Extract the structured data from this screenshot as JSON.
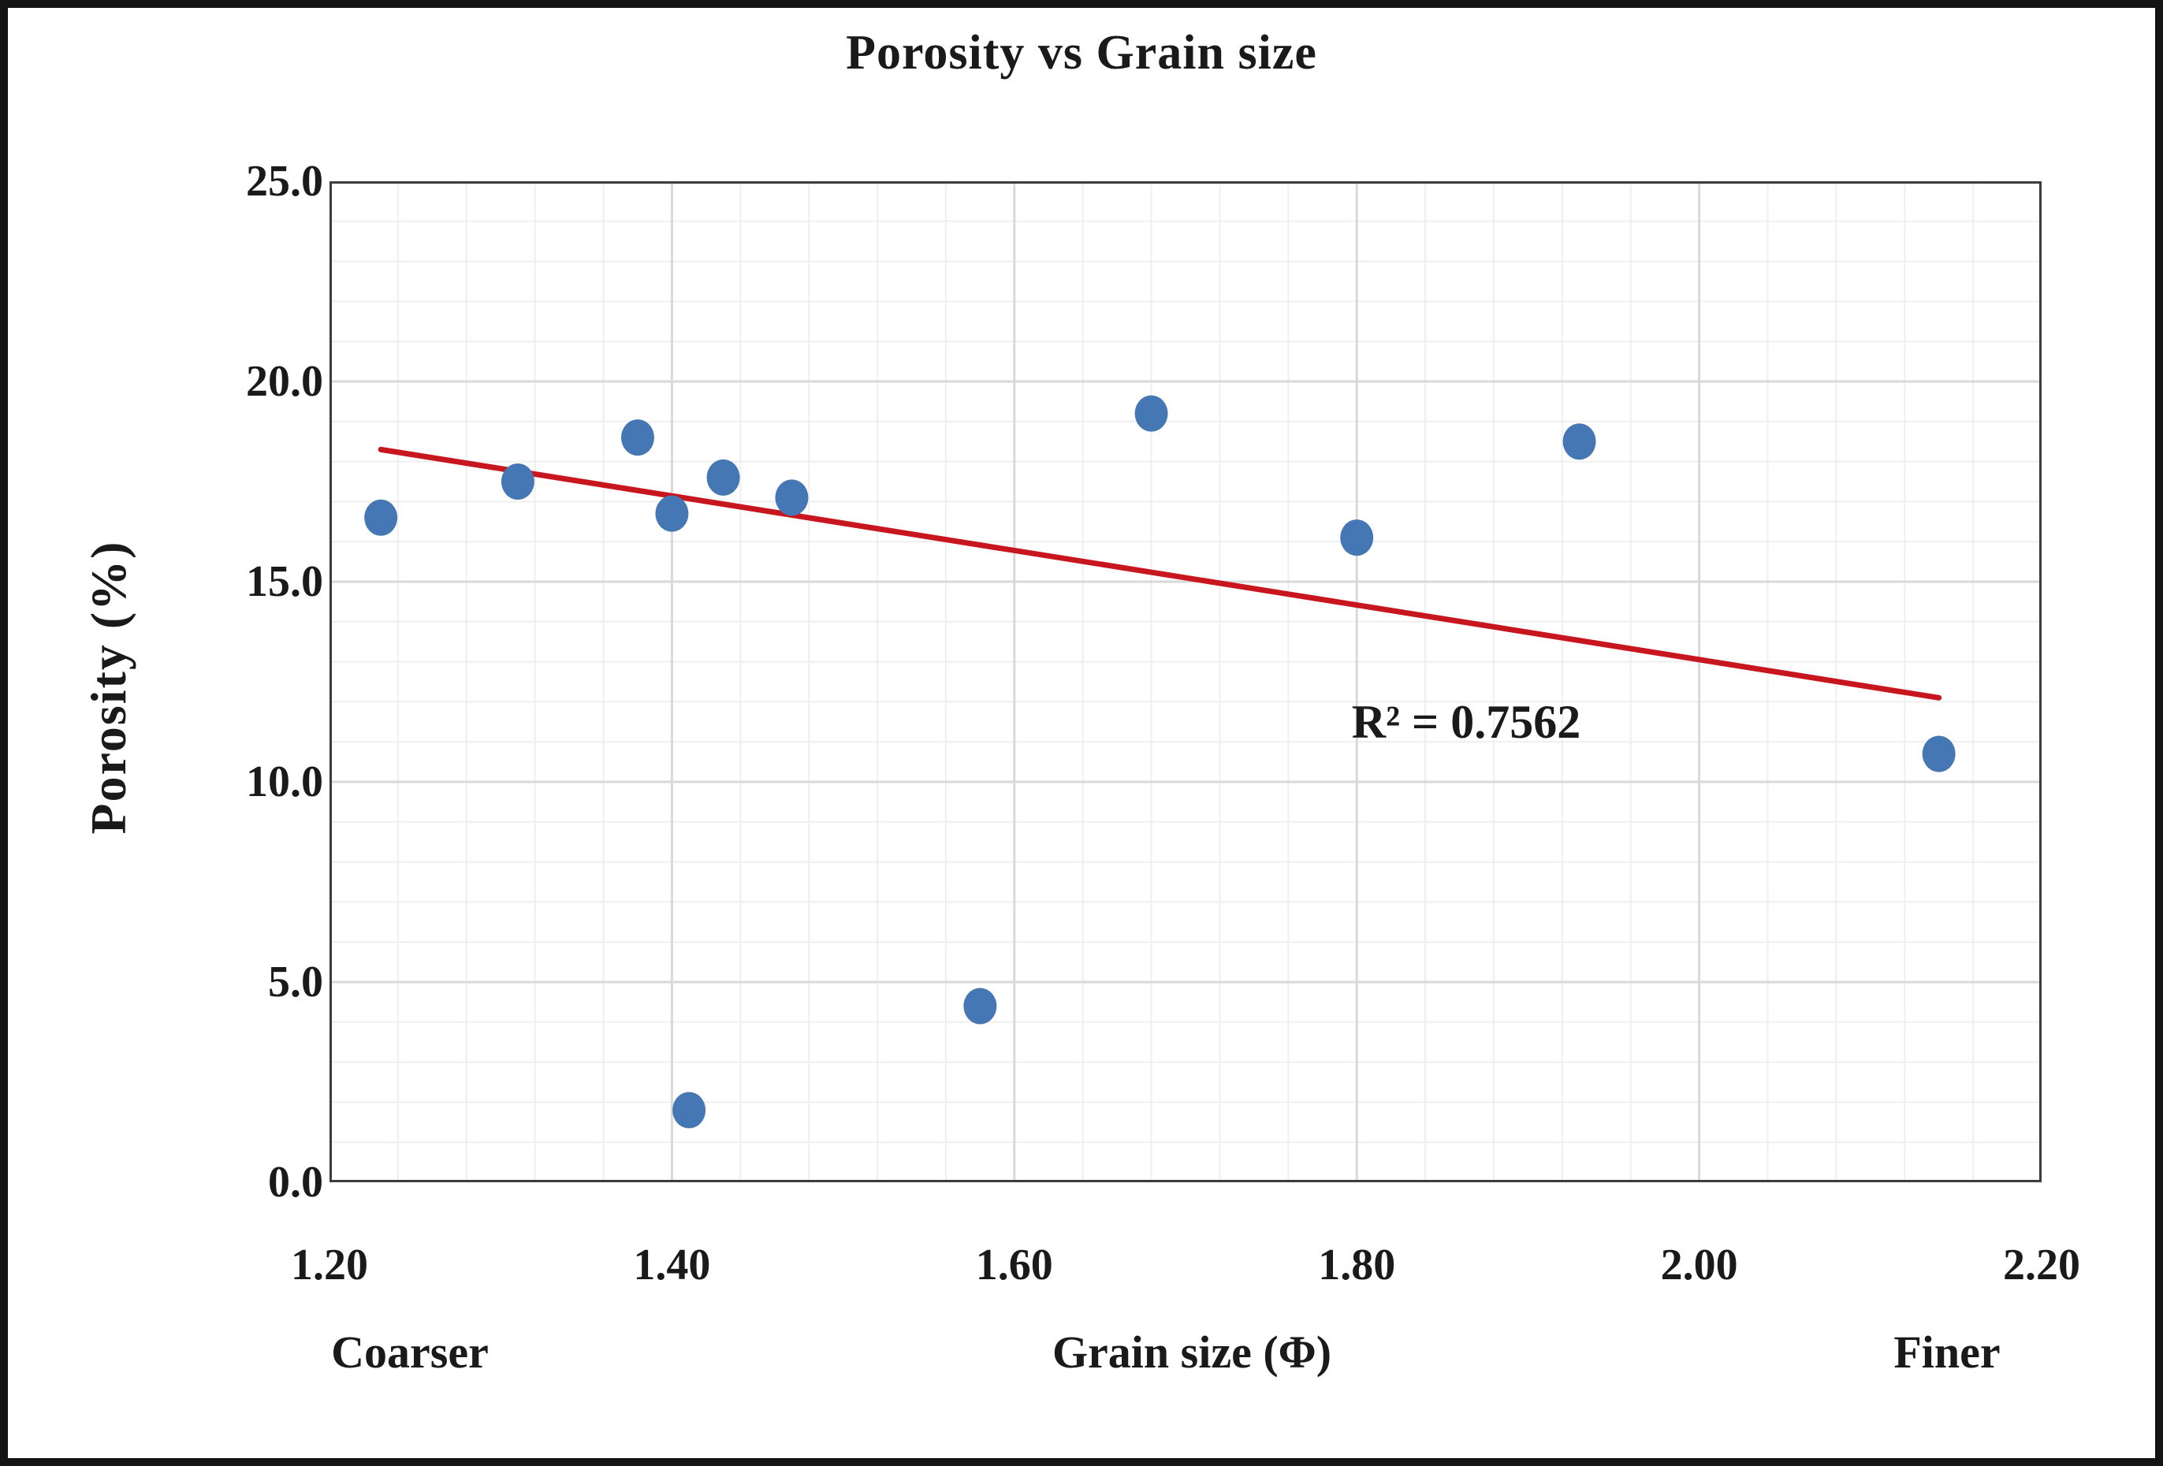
{
  "chart_data": {
    "type": "scatter",
    "title": "Porosity vs Grain size",
    "xlabel": "Grain size (Φ)",
    "ylabel": "Porosity (%)",
    "x_context_left": "Coarser",
    "x_context_right": "Finer",
    "xlim": [
      1.2,
      2.2
    ],
    "ylim": [
      0.0,
      25.0
    ],
    "x_ticks": [
      {
        "value": 1.2,
        "label": "1.20"
      },
      {
        "value": 1.4,
        "label": "1.40"
      },
      {
        "value": 1.6,
        "label": "1.60"
      },
      {
        "value": 1.8,
        "label": "1.80"
      },
      {
        "value": 2.0,
        "label": "2.00"
      },
      {
        "value": 2.2,
        "label": "2.20"
      }
    ],
    "y_ticks": [
      {
        "value": 0.0,
        "label": "0.0"
      },
      {
        "value": 5.0,
        "label": "5.0"
      },
      {
        "value": 10.0,
        "label": "10.0"
      },
      {
        "value": 15.0,
        "label": "15.0"
      },
      {
        "value": 20.0,
        "label": "20.0"
      },
      {
        "value": 25.0,
        "label": "25.0"
      }
    ],
    "x_minor_step": 0.04,
    "y_minor_step": 1.0,
    "grid": "major+minor",
    "legend": null,
    "points": [
      {
        "x": 1.23,
        "y": 16.6
      },
      {
        "x": 1.31,
        "y": 17.5
      },
      {
        "x": 1.38,
        "y": 18.6
      },
      {
        "x": 1.4,
        "y": 16.7
      },
      {
        "x": 1.41,
        "y": 1.8
      },
      {
        "x": 1.43,
        "y": 17.6
      },
      {
        "x": 1.47,
        "y": 17.1
      },
      {
        "x": 1.58,
        "y": 4.4
      },
      {
        "x": 1.68,
        "y": 19.2
      },
      {
        "x": 1.8,
        "y": 16.1
      },
      {
        "x": 1.93,
        "y": 18.5
      },
      {
        "x": 2.14,
        "y": 10.7
      }
    ],
    "trendline": {
      "x1": 1.23,
      "y1": 18.3,
      "x2": 2.14,
      "y2": 12.1,
      "r_squared_label": "R² = 0.7562",
      "label_anchor": {
        "x": 1.864,
        "y": 11.4
      }
    },
    "colors": {
      "point": "#4577B4",
      "trend": "#C8161E",
      "grid_major": "#D9D9D9",
      "grid_minor": "#EFEFEF",
      "plot_border": "#3C3C3C",
      "text": "#1A1A1A",
      "figure_border": "#141414"
    }
  }
}
